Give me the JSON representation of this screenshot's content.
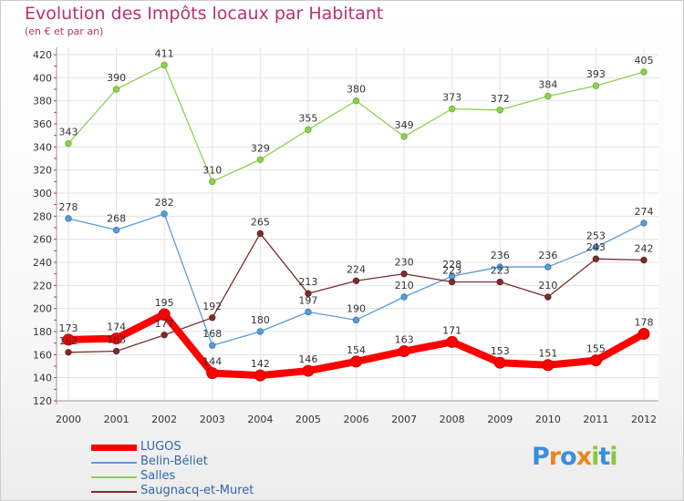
{
  "chart_data": {
    "type": "line",
    "title": "Evolution des Impôts locaux par Habitant",
    "subtitle": "(en € et par an)",
    "x": [
      "2000",
      "2001",
      "2002",
      "2003",
      "2004",
      "2005",
      "2006",
      "2007",
      "2008",
      "2009",
      "2010",
      "2011",
      "2012"
    ],
    "yticks": [
      120,
      140,
      160,
      180,
      200,
      220,
      240,
      260,
      280,
      300,
      320,
      340,
      360,
      380,
      400,
      420
    ],
    "ylim": [
      120,
      420
    ],
    "series": [
      {
        "name": "LUGOS",
        "color": "#ff0000",
        "values": [
          173,
          174,
          195,
          144,
          142,
          146,
          154,
          163,
          171,
          153,
          151,
          155,
          178
        ]
      },
      {
        "name": "Belin-Béliet",
        "color": "#5b9bd5",
        "values": [
          278,
          268,
          282,
          168,
          180,
          197,
          190,
          210,
          228,
          236,
          236,
          253,
          274
        ]
      },
      {
        "name": "Salles",
        "color": "#8fd14f",
        "values": [
          343,
          390,
          411,
          310,
          329,
          355,
          380,
          349,
          373,
          372,
          384,
          393,
          405
        ]
      },
      {
        "name": "Saugnacq-et-Muret",
        "color": "#7b2d2d",
        "values": [
          162,
          163,
          177,
          192,
          265,
          213,
          224,
          230,
          223,
          223,
          210,
          243,
          242
        ]
      }
    ]
  },
  "logo": {
    "letters": [
      "P",
      "r",
      "o",
      "x",
      "i",
      "t",
      "i"
    ],
    "colors": [
      "#3a8fd9",
      "#e8871e",
      "#3a8fd9",
      "#e8871e",
      "#8cc63f",
      "#3a8fd9",
      "#8cc63f"
    ]
  }
}
